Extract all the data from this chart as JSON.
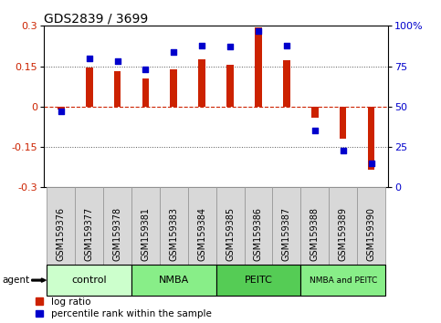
{
  "title": "GDS2839 / 3699",
  "samples": [
    "GSM159376",
    "GSM159377",
    "GSM159378",
    "GSM159381",
    "GSM159383",
    "GSM159384",
    "GSM159385",
    "GSM159386",
    "GSM159387",
    "GSM159388",
    "GSM159389",
    "GSM159390"
  ],
  "log_ratio": [
    -0.012,
    0.145,
    0.133,
    0.105,
    0.138,
    0.175,
    0.157,
    0.295,
    0.173,
    -0.042,
    -0.118,
    -0.235
  ],
  "percentile": [
    47,
    80,
    78,
    73,
    84,
    88,
    87,
    97,
    88,
    35,
    23,
    15
  ],
  "bar_color": "#cc2200",
  "dot_color": "#0000cc",
  "ylim_left": [
    -0.3,
    0.3
  ],
  "ylim_right": [
    0,
    100
  ],
  "yticks_left": [
    -0.3,
    -0.15,
    0,
    0.15,
    0.3
  ],
  "yticks_right": [
    0,
    25,
    50,
    75,
    100
  ],
  "hlines": [
    -0.15,
    0,
    0.15
  ],
  "tick_label_fontsize": 7,
  "title_fontsize": 10,
  "legend_fontsize": 7.5,
  "group_fontsize": 8,
  "agent_label": "agent",
  "legend_items": [
    "log ratio",
    "percentile rank within the sample"
  ],
  "group_data": [
    [
      "control",
      0,
      3,
      "#ccffcc"
    ],
    [
      "NMBA",
      3,
      6,
      "#88ee88"
    ],
    [
      "PEITC",
      6,
      9,
      "#55cc55"
    ],
    [
      "NMBA and PEITC",
      9,
      12,
      "#88ee88"
    ]
  ]
}
